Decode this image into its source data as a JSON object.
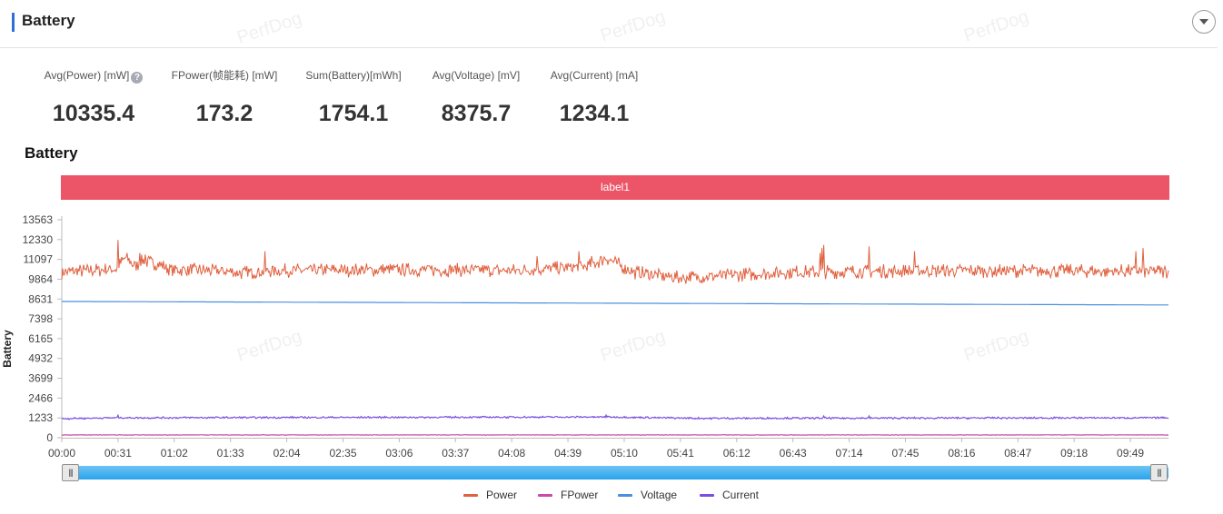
{
  "header": {
    "title": "Battery"
  },
  "stats": [
    {
      "label": "Avg(Power) [mW]",
      "value": "10335.4",
      "has_help": true
    },
    {
      "label": "FPower(帧能耗) [mW]",
      "value": "173.2",
      "has_help": false
    },
    {
      "label": "Sum(Battery)[mWh]",
      "value": "1754.1",
      "has_help": false
    },
    {
      "label": "Avg(Voltage) [mV]",
      "value": "8375.7",
      "has_help": false
    },
    {
      "label": "Avg(Current) [mA]",
      "value": "1234.1",
      "has_help": false
    }
  ],
  "watermark": "PerfDog",
  "chart": {
    "title": "Battery",
    "label_banner": "label1",
    "slider": {
      "start": 0,
      "end": 1
    },
    "icons": {
      "help": "help-icon",
      "collapse": "chevron-down-icon",
      "slider_handle": "grip-icon"
    }
  },
  "chart_data": {
    "type": "line",
    "title": "Battery",
    "xlabel": "",
    "ylabel": "Battery",
    "ylim": [
      0,
      13563
    ],
    "yticks": [
      0,
      1233,
      2466,
      3699,
      4932,
      6165,
      7398,
      8631,
      9864,
      11097,
      12330,
      13563
    ],
    "xticks": [
      "00:00",
      "00:31",
      "01:02",
      "01:33",
      "02:04",
      "02:35",
      "03:06",
      "03:37",
      "04:08",
      "04:39",
      "05:10",
      "05:41",
      "06:12",
      "06:43",
      "07:14",
      "07:45",
      "08:16",
      "08:47",
      "09:18",
      "09:49"
    ],
    "x_range_seconds": [
      0,
      610
    ],
    "grid": false,
    "legend_position": "bottom-center",
    "series": [
      {
        "name": "Power",
        "color": "#e0603f",
        "baseline": 10335,
        "noise_amplitude": 450,
        "anchors": [
          [
            0,
            10300
          ],
          [
            30,
            10500
          ],
          [
            35,
            11200
          ],
          [
            40,
            10700
          ],
          [
            45,
            11000
          ],
          [
            50,
            10900
          ],
          [
            60,
            10500
          ],
          [
            90,
            10350
          ],
          [
            100,
            10250
          ],
          [
            115,
            10400
          ],
          [
            200,
            10450
          ],
          [
            250,
            10400
          ],
          [
            290,
            10650
          ],
          [
            300,
            11200
          ],
          [
            305,
            10900
          ],
          [
            315,
            10300
          ],
          [
            330,
            10100
          ],
          [
            340,
            9950
          ],
          [
            350,
            10000
          ],
          [
            400,
            10300
          ],
          [
            500,
            10400
          ],
          [
            610,
            10350
          ]
        ],
        "spikes": [
          [
            31,
            12300
          ],
          [
            43,
            11500
          ],
          [
            46,
            11400
          ],
          [
            112,
            11600
          ],
          [
            262,
            11300
          ],
          [
            285,
            11600
          ],
          [
            292,
            11300
          ],
          [
            420,
            11300
          ],
          [
            418,
            11500
          ],
          [
            419,
            11800
          ],
          [
            420,
            12000
          ],
          [
            445,
            11900
          ],
          [
            470,
            11600
          ],
          [
            592,
            11600
          ],
          [
            596,
            11800
          ]
        ]
      },
      {
        "name": "FPower",
        "color": "#c94aa8",
        "baseline": 173,
        "noise_amplitude": 15,
        "anchors": [
          [
            0,
            173
          ],
          [
            610,
            173
          ]
        ],
        "spikes": []
      },
      {
        "name": "Voltage",
        "color": "#4a8fe0",
        "baseline": 8376,
        "noise_amplitude": 0,
        "anchors": [
          [
            0,
            8480
          ],
          [
            610,
            8260
          ]
        ],
        "spikes": []
      },
      {
        "name": "Current",
        "color": "#7a4ee0",
        "baseline": 1234,
        "noise_amplitude": 60,
        "anchors": [
          [
            0,
            1190
          ],
          [
            30,
            1240
          ],
          [
            300,
            1290
          ],
          [
            350,
            1210
          ],
          [
            610,
            1240
          ]
        ],
        "spikes": [
          [
            31,
            1400
          ],
          [
            300,
            1400
          ],
          [
            420,
            1350
          ],
          [
            445,
            1350
          ]
        ]
      }
    ]
  },
  "legend": [
    {
      "name": "Power",
      "color": "#e0603f"
    },
    {
      "name": "FPower",
      "color": "#c94aa8"
    },
    {
      "name": "Voltage",
      "color": "#4a8fe0"
    },
    {
      "name": "Current",
      "color": "#7a4ee0"
    }
  ]
}
